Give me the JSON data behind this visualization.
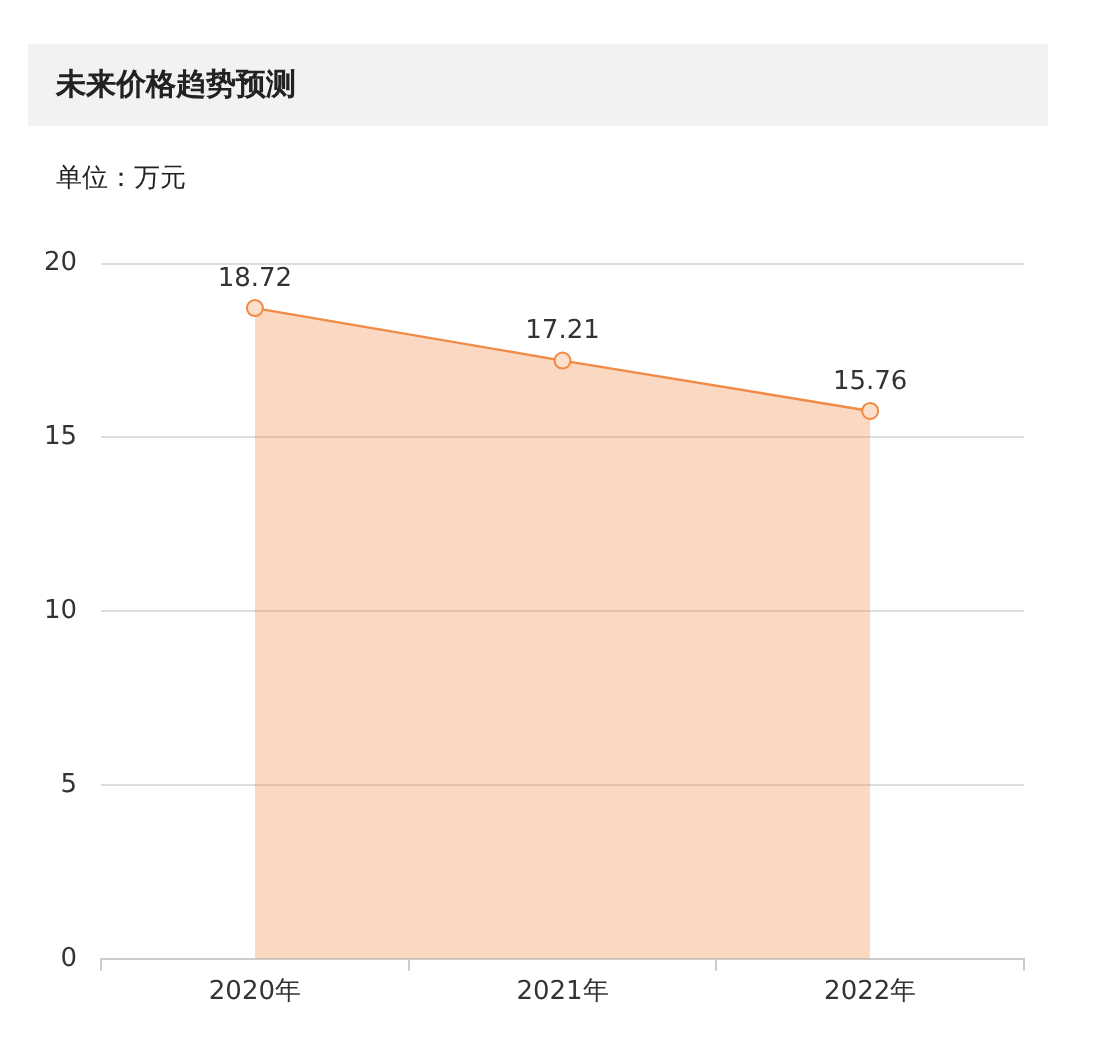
{
  "chart_data": {
    "type": "area",
    "title": "未来价格趋势预测",
    "subtitle": "单位：万元",
    "categories": [
      "2020年",
      "2021年",
      "2022年"
    ],
    "series": [
      {
        "color": "#f08a45",
        "values": [
          18.72,
          17.21,
          15.76
        ]
      }
    ],
    "ylim": [
      0,
      20
    ],
    "yticks": [
      0,
      5,
      10,
      15,
      20
    ],
    "grid": "y",
    "marker": "circle",
    "data_labels": true
  }
}
